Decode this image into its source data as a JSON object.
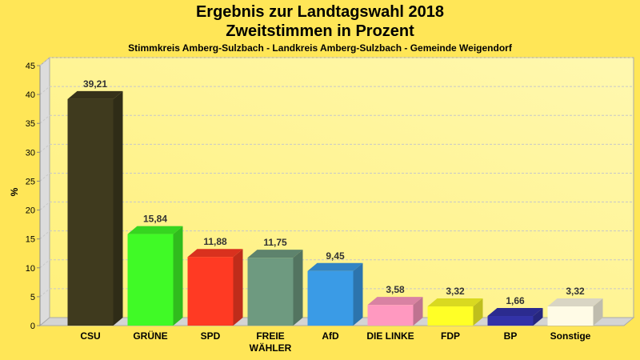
{
  "header": {
    "title": "Ergebnis zur Landtagswahl 2018",
    "subtitle": "Zweitstimmen in Prozent",
    "region": "Stimmkreis Amberg-Sulzbach - Landkreis Amberg-Sulzbach - Gemeinde Weigendorf"
  },
  "chart_data": {
    "type": "bar",
    "title": "Ergebnis zur Landtagswahl 2018",
    "subtitle": "Zweitstimmen in Prozent",
    "xlabel": "",
    "ylabel": "%",
    "ylim": [
      0,
      45
    ],
    "yticks": [
      0,
      5,
      10,
      15,
      20,
      25,
      30,
      35,
      40,
      45
    ],
    "grid": true,
    "categories": [
      "CSU",
      "GRÜNE",
      "SPD",
      "FREIE WÄHLER",
      "AfD",
      "DIE LINKE",
      "FDP",
      "BP",
      "Sonstige"
    ],
    "category_lines": [
      [
        "CSU"
      ],
      [
        "GRÜNE"
      ],
      [
        "SPD"
      ],
      [
        "FREIE",
        "WÄHLER"
      ],
      [
        "AfD"
      ],
      [
        "DIE LINKE"
      ],
      [
        "FDP"
      ],
      [
        "BP"
      ],
      [
        "Sonstige"
      ]
    ],
    "values": [
      39.21,
      15.84,
      11.88,
      11.75,
      9.45,
      3.58,
      3.32,
      1.66,
      3.32
    ],
    "value_labels": [
      "39,21",
      "15,84",
      "11,88",
      "11,75",
      "9,45",
      "3,58",
      "3,32",
      "1,66",
      "3,32"
    ],
    "colors": [
      "#3f3a1e",
      "#40fa26",
      "#ff3a23",
      "#6e9a80",
      "#3a9be6",
      "#ff99c0",
      "#ffff26",
      "#3232a8",
      "#fffbe6"
    ]
  }
}
